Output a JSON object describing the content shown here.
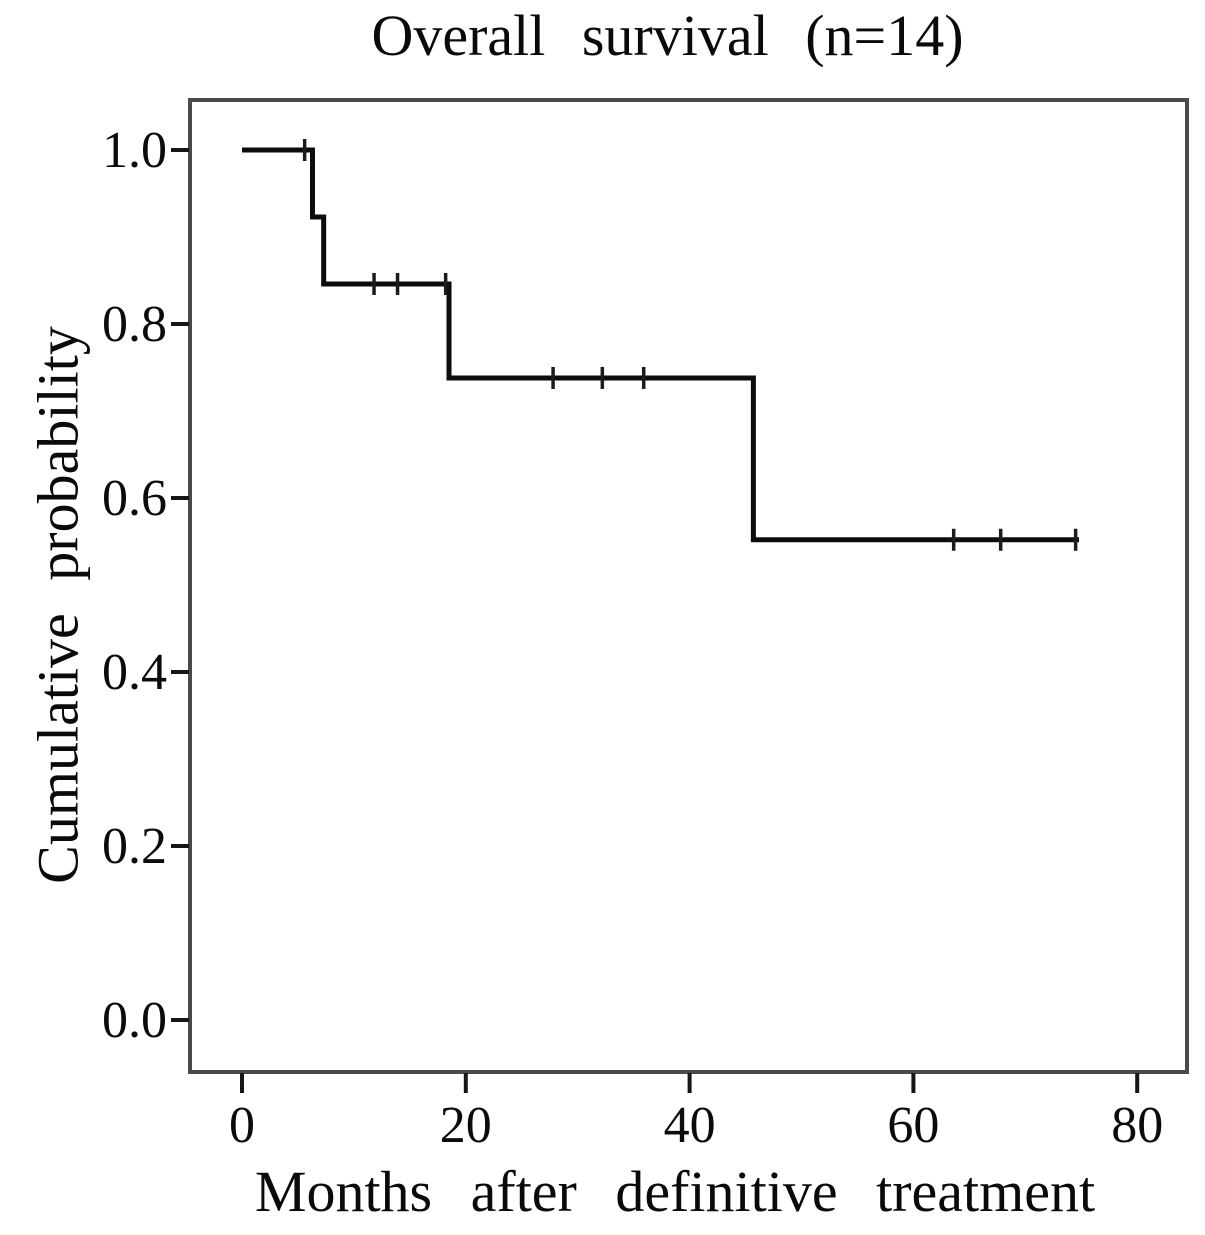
{
  "colors": {
    "curve": "#0d0d0d",
    "frame": "#4a4a4a",
    "text": "#0b0b0b",
    "background": "#ffffff"
  },
  "chart_data": {
    "type": "line",
    "subtype": "kaplan-meier-step",
    "title": "Overall survival (n=14)",
    "xlabel": "Months after definitive treatment",
    "ylabel": "Cumulative probability",
    "n": 14,
    "xlim": [
      0,
      80
    ],
    "ylim": [
      0.0,
      1.0
    ],
    "grid": false,
    "legend": null,
    "xticks": [
      {
        "value": 0,
        "label": "0"
      },
      {
        "value": 20,
        "label": "20"
      },
      {
        "value": 40,
        "label": "40"
      },
      {
        "value": 60,
        "label": "60"
      },
      {
        "value": 80,
        "label": "80"
      }
    ],
    "yticks": [
      {
        "value": 1.0,
        "label": "1.0"
      },
      {
        "value": 0.8,
        "label": "0.8"
      },
      {
        "value": 0.6,
        "label": "0.6"
      },
      {
        "value": 0.4,
        "label": "0.4"
      },
      {
        "value": 0.2,
        "label": "0.2"
      },
      {
        "value": 0.0,
        "label": "0.0"
      }
    ],
    "series": [
      {
        "name": "Overall survival",
        "color": "#0d0d0d",
        "steps": [
          {
            "t": 0.0,
            "s": 1.0
          },
          {
            "t": 6.3,
            "s": 0.923
          },
          {
            "t": 7.3,
            "s": 0.846
          },
          {
            "t": 18.5,
            "s": 0.738
          },
          {
            "t": 45.7,
            "s": 0.552
          }
        ],
        "end_t": 74.8,
        "censored": [
          {
            "t": 5.6,
            "s": 1.0
          },
          {
            "t": 11.8,
            "s": 0.846
          },
          {
            "t": 13.9,
            "s": 0.846
          },
          {
            "t": 18.2,
            "s": 0.846
          },
          {
            "t": 27.8,
            "s": 0.738
          },
          {
            "t": 32.2,
            "s": 0.738
          },
          {
            "t": 35.9,
            "s": 0.738
          },
          {
            "t": 63.6,
            "s": 0.552
          },
          {
            "t": 67.8,
            "s": 0.552
          },
          {
            "t": 74.5,
            "s": 0.552
          }
        ]
      }
    ]
  }
}
